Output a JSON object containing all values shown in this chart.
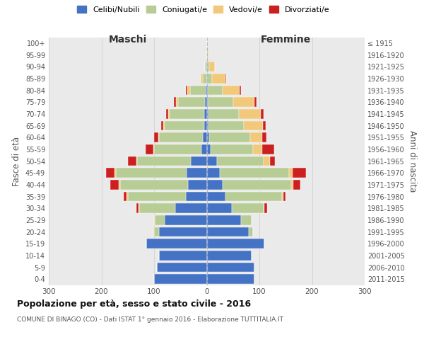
{
  "age_groups": [
    "0-4",
    "5-9",
    "10-14",
    "15-19",
    "20-24",
    "25-29",
    "30-34",
    "35-39",
    "40-44",
    "45-49",
    "50-54",
    "55-59",
    "60-64",
    "65-69",
    "70-74",
    "75-79",
    "80-84",
    "85-89",
    "90-94",
    "95-99",
    "100+"
  ],
  "birth_years": [
    "2011-2015",
    "2006-2010",
    "2001-2005",
    "1996-2000",
    "1991-1995",
    "1986-1990",
    "1981-1985",
    "1976-1980",
    "1971-1975",
    "1966-1970",
    "1961-1965",
    "1956-1960",
    "1951-1955",
    "1946-1950",
    "1941-1945",
    "1936-1940",
    "1931-1935",
    "1926-1930",
    "1921-1925",
    "1916-1920",
    "≤ 1915"
  ],
  "males_celibi": [
    100,
    95,
    90,
    115,
    90,
    80,
    60,
    40,
    35,
    38,
    30,
    10,
    8,
    5,
    5,
    3,
    2,
    0,
    0,
    0,
    0
  ],
  "males_coniugati": [
    0,
    0,
    0,
    0,
    10,
    18,
    68,
    110,
    130,
    135,
    102,
    90,
    82,
    75,
    65,
    52,
    30,
    8,
    3,
    1,
    0
  ],
  "males_vedovi": [
    0,
    0,
    0,
    0,
    2,
    2,
    2,
    2,
    2,
    2,
    2,
    2,
    2,
    2,
    3,
    4,
    5,
    4,
    0,
    0,
    0
  ],
  "males_divorziati": [
    0,
    0,
    0,
    0,
    0,
    0,
    3,
    6,
    16,
    16,
    16,
    14,
    8,
    4,
    4,
    3,
    2,
    0,
    0,
    0,
    0
  ],
  "females_nubili": [
    90,
    90,
    85,
    110,
    80,
    65,
    48,
    35,
    30,
    25,
    20,
    8,
    5,
    3,
    3,
    2,
    2,
    0,
    0,
    0,
    0
  ],
  "females_coniugate": [
    0,
    0,
    0,
    0,
    8,
    20,
    60,
    108,
    130,
    132,
    88,
    80,
    78,
    68,
    58,
    48,
    28,
    10,
    5,
    1,
    0
  ],
  "females_vedove": [
    0,
    0,
    0,
    0,
    0,
    0,
    2,
    2,
    4,
    6,
    12,
    18,
    22,
    36,
    42,
    40,
    32,
    25,
    10,
    3,
    2
  ],
  "females_divorziate": [
    0,
    0,
    0,
    0,
    0,
    0,
    5,
    5,
    14,
    26,
    10,
    22,
    8,
    5,
    5,
    4,
    3,
    2,
    0,
    0,
    0
  ],
  "color_celibi": "#4472c4",
  "color_coniugati": "#b8cc96",
  "color_vedovi": "#f2c87a",
  "color_divorziati": "#cc2020",
  "title": "Popolazione per età, sesso e stato civile - 2016",
  "subtitle": "COMUNE DI BINAGO (CO) - Dati ISTAT 1° gennaio 2016 - Elaborazione TUTTITALIA.IT",
  "legend_labels": [
    "Celibi/Nubili",
    "Coniugati/e",
    "Vedovi/e",
    "Divorziati/e"
  ],
  "xlim": 300,
  "bar_height": 0.82
}
